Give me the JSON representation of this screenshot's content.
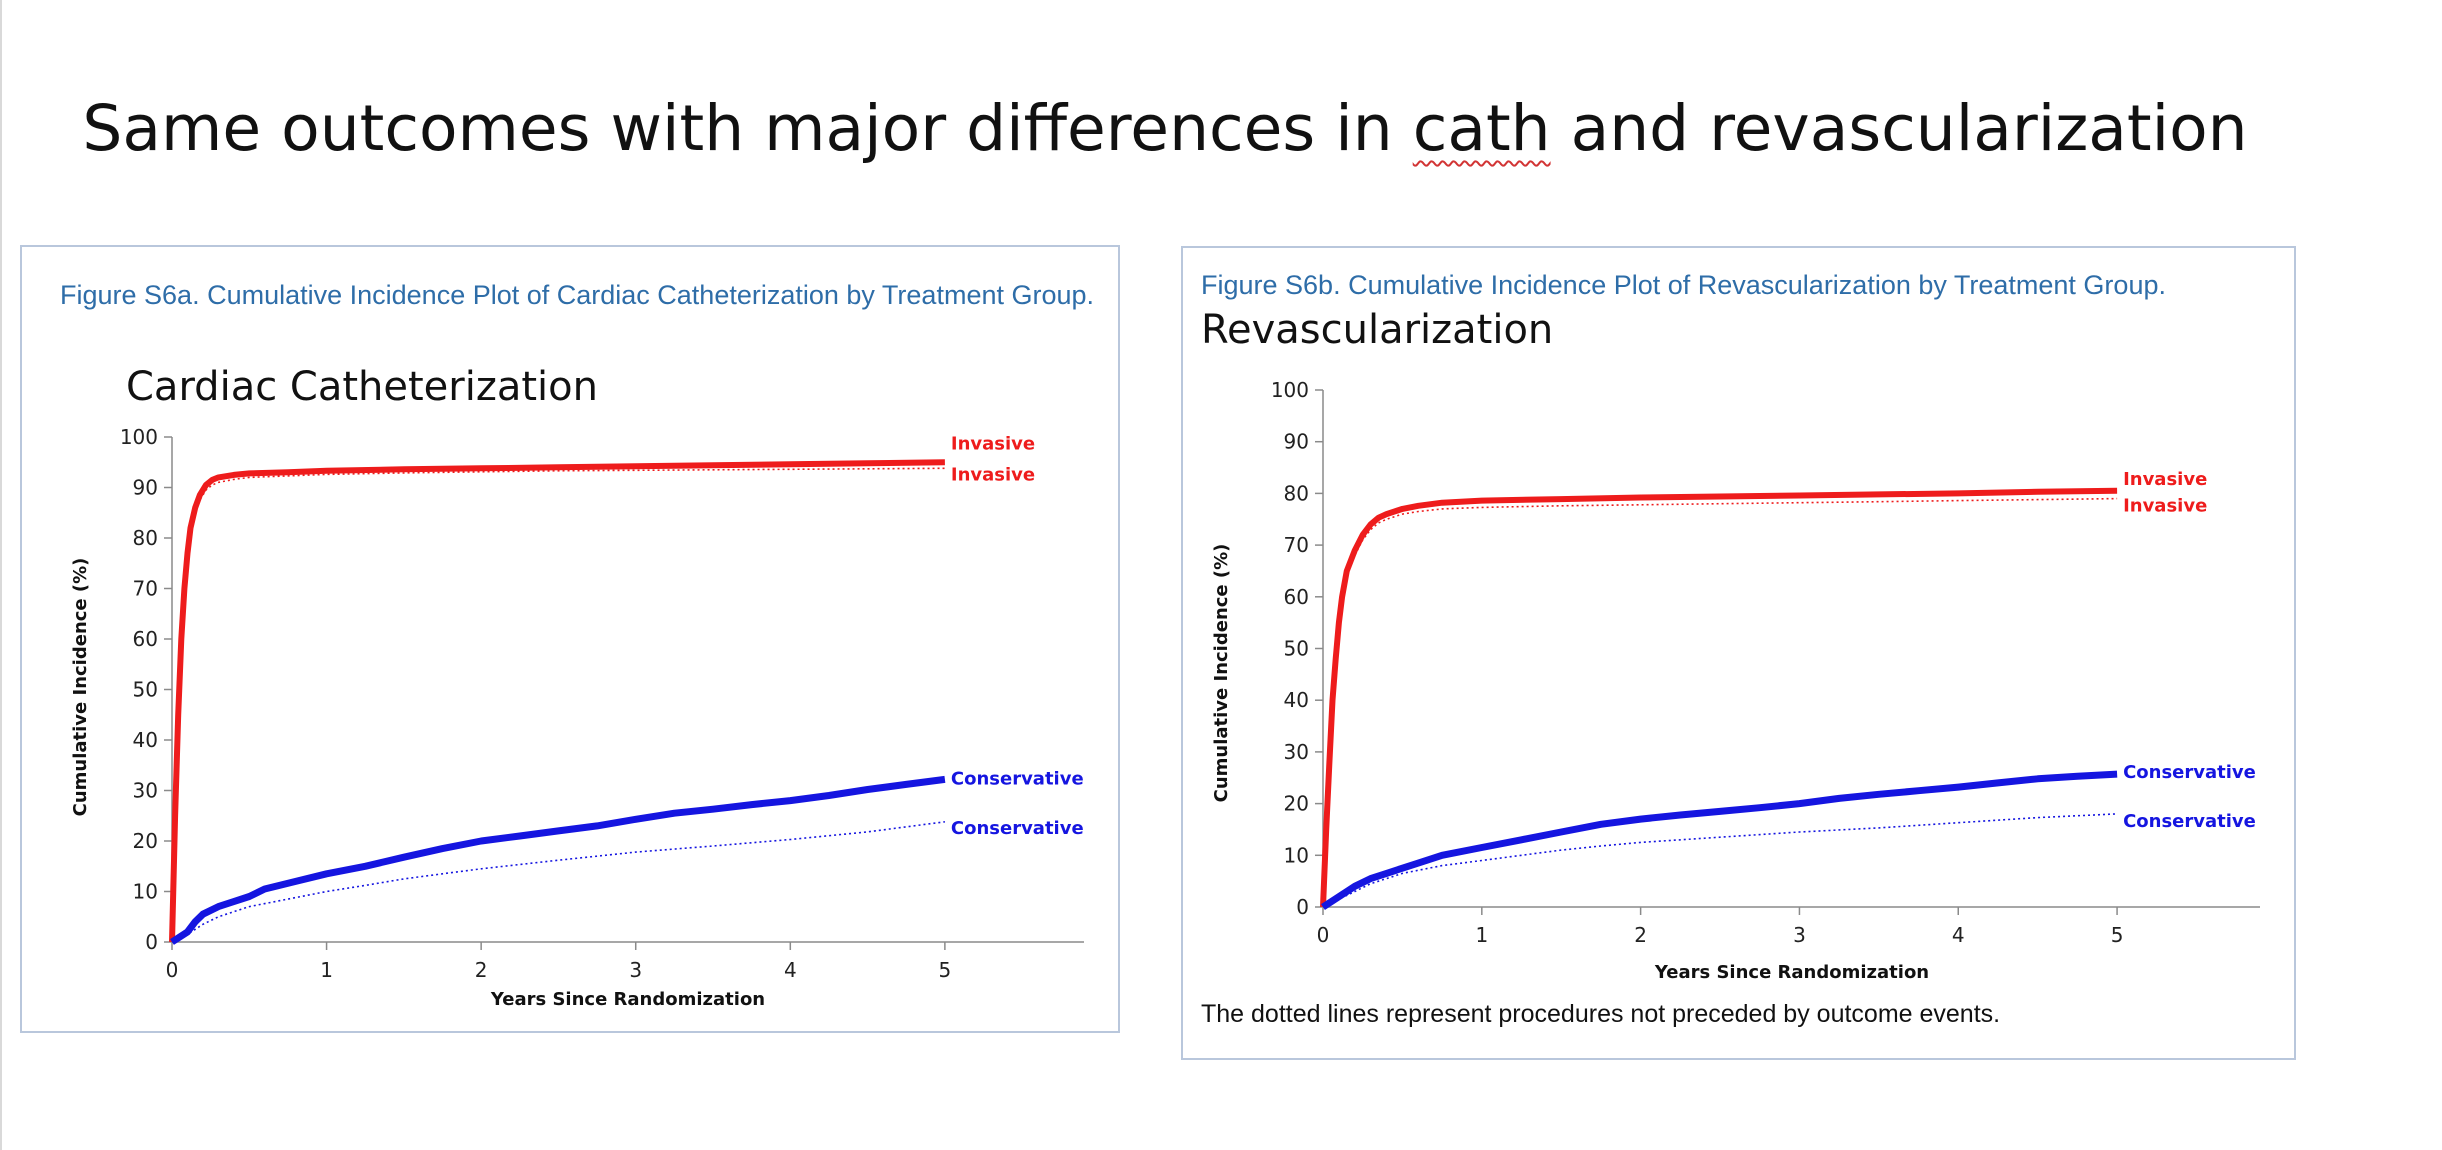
{
  "slide": {
    "title_before": "Same outcomes with major differences in ",
    "title_cath": "cath",
    "title_after": " and revascularization"
  },
  "colors": {
    "invasive": "#ee1c1c",
    "conservative": "#1515e0",
    "caption": "#2e6da8",
    "panel_border": "#b9c7dc"
  },
  "chart_data": [
    {
      "type": "line",
      "caption": "Figure S6a. Cumulative Incidence Plot of Cardiac Catheterization by Treatment Group.",
      "title": "Cardiac Catheterization",
      "xlabel": "Years Since Randomization",
      "ylabel": "Cumulative Incidence (%)",
      "xlim": [
        0,
        5.9
      ],
      "ylim": [
        0,
        100
      ],
      "xticks": [
        0,
        1,
        2,
        3,
        4,
        5
      ],
      "yticks": [
        0,
        10,
        20,
        30,
        40,
        50,
        60,
        70,
        80,
        90,
        100
      ],
      "grid": false,
      "series": [
        {
          "name": "Invasive",
          "style": "solid",
          "color": "#ee1c1c",
          "x": [
            0,
            0.02,
            0.04,
            0.06,
            0.08,
            0.1,
            0.12,
            0.15,
            0.18,
            0.22,
            0.26,
            0.3,
            0.4,
            0.5,
            0.75,
            1,
            1.5,
            2,
            2.5,
            3,
            3.5,
            4,
            4.5,
            5
          ],
          "y": [
            0,
            25,
            45,
            60,
            70,
            77,
            82,
            86,
            88.5,
            90.5,
            91.5,
            92,
            92.5,
            92.8,
            93,
            93.3,
            93.6,
            93.8,
            94,
            94.2,
            94.4,
            94.6,
            94.8,
            95
          ]
        },
        {
          "name": "Invasive",
          "style": "dotted",
          "color": "#ee1c1c",
          "x": [
            0,
            0.02,
            0.04,
            0.06,
            0.08,
            0.1,
            0.12,
            0.15,
            0.18,
            0.22,
            0.26,
            0.3,
            0.4,
            0.5,
            0.75,
            1,
            1.5,
            2,
            2.5,
            3,
            3.5,
            4,
            4.5,
            5
          ],
          "y": [
            0,
            24,
            44,
            59,
            69,
            76,
            81,
            85,
            87.5,
            89.5,
            90.5,
            91,
            91.6,
            92,
            92.3,
            92.6,
            92.9,
            93.1,
            93.3,
            93.4,
            93.5,
            93.6,
            93.7,
            93.8
          ]
        },
        {
          "name": "Conservative",
          "style": "solid",
          "color": "#1515e0",
          "x": [
            0,
            0.1,
            0.15,
            0.2,
            0.3,
            0.4,
            0.5,
            0.6,
            0.8,
            1,
            1.25,
            1.5,
            1.75,
            2,
            2.25,
            2.5,
            2.75,
            3,
            3.25,
            3.5,
            3.75,
            4,
            4.25,
            4.5,
            4.75,
            5
          ],
          "y": [
            0,
            2,
            4,
            5.5,
            7,
            8,
            9,
            10.5,
            12,
            13.5,
            15,
            16.8,
            18.5,
            20,
            21,
            22,
            23,
            24.3,
            25.5,
            26.3,
            27.2,
            28,
            29,
            30.2,
            31.2,
            32.2
          ]
        },
        {
          "name": "Conservative",
          "style": "dotted",
          "color": "#1515e0",
          "x": [
            0,
            0.1,
            0.2,
            0.3,
            0.4,
            0.5,
            0.75,
            1,
            1.25,
            1.5,
            1.75,
            2,
            2.5,
            3,
            3.5,
            4,
            4.5,
            5
          ],
          "y": [
            0,
            1.5,
            3.5,
            5,
            6,
            7,
            8.5,
            10,
            11.2,
            12.5,
            13.5,
            14.5,
            16.2,
            17.8,
            19,
            20.3,
            21.8,
            23.8
          ]
        }
      ]
    },
    {
      "type": "line",
      "caption": "Figure S6b. Cumulative Incidence Plot of Revascularization by Treatment Group.",
      "title": "Revascularization",
      "xlabel": "Years Since Randomization",
      "ylabel": "Cumulative Incidence (%)",
      "xlim": [
        0,
        5.9
      ],
      "ylim": [
        0,
        100
      ],
      "xticks": [
        0,
        1,
        2,
        3,
        4,
        5
      ],
      "yticks": [
        0,
        10,
        20,
        30,
        40,
        50,
        60,
        70,
        80,
        90,
        100
      ],
      "grid": false,
      "series": [
        {
          "name": "Invasive",
          "style": "solid",
          "color": "#ee1c1c",
          "x": [
            0,
            0.02,
            0.04,
            0.06,
            0.08,
            0.1,
            0.12,
            0.15,
            0.2,
            0.25,
            0.3,
            0.35,
            0.4,
            0.5,
            0.6,
            0.75,
            1,
            1.5,
            2,
            2.5,
            3,
            3.5,
            4,
            4.5,
            5
          ],
          "y": [
            0,
            15,
            28,
            40,
            48,
            55,
            60,
            65,
            69,
            72,
            74,
            75.3,
            76,
            77,
            77.6,
            78.2,
            78.6,
            78.9,
            79.2,
            79.4,
            79.6,
            79.8,
            80,
            80.3,
            80.5
          ]
        },
        {
          "name": "Invasive",
          "style": "dotted",
          "color": "#ee1c1c",
          "x": [
            0,
            0.02,
            0.04,
            0.06,
            0.08,
            0.1,
            0.12,
            0.15,
            0.2,
            0.25,
            0.3,
            0.35,
            0.4,
            0.5,
            0.6,
            0.75,
            1,
            1.5,
            2,
            2.5,
            3,
            3.5,
            4,
            4.5,
            5
          ],
          "y": [
            0,
            14.5,
            27,
            39,
            47,
            54,
            59,
            64,
            68,
            71,
            73,
            74.3,
            75,
            76,
            76.5,
            77,
            77.3,
            77.6,
            77.8,
            78,
            78.2,
            78.4,
            78.6,
            78.8,
            79
          ]
        },
        {
          "name": "Conservative",
          "style": "solid",
          "color": "#1515e0",
          "x": [
            0,
            0.1,
            0.2,
            0.3,
            0.4,
            0.5,
            0.6,
            0.75,
            1,
            1.25,
            1.5,
            1.75,
            2,
            2.25,
            2.5,
            2.75,
            3,
            3.25,
            3.5,
            3.75,
            4,
            4.25,
            4.5,
            4.75,
            5
          ],
          "y": [
            0,
            2,
            4,
            5.5,
            6.5,
            7.5,
            8.5,
            10,
            11.5,
            13,
            14.5,
            16,
            17,
            17.8,
            18.5,
            19.2,
            20,
            21,
            21.8,
            22.5,
            23.2,
            24,
            24.8,
            25.3,
            25.7
          ]
        },
        {
          "name": "Conservative",
          "style": "dotted",
          "color": "#1515e0",
          "x": [
            0,
            0.1,
            0.2,
            0.3,
            0.4,
            0.5,
            0.75,
            1,
            1.25,
            1.5,
            1.75,
            2,
            2.5,
            3,
            3.5,
            4,
            4.5,
            5
          ],
          "y": [
            0,
            1.5,
            3,
            4.5,
            5.5,
            6.5,
            8,
            9,
            10,
            11,
            11.8,
            12.5,
            13.5,
            14.5,
            15.3,
            16.3,
            17.3,
            18
          ]
        }
      ],
      "footnote": "The dotted lines represent procedures not preceded by outcome events."
    }
  ]
}
